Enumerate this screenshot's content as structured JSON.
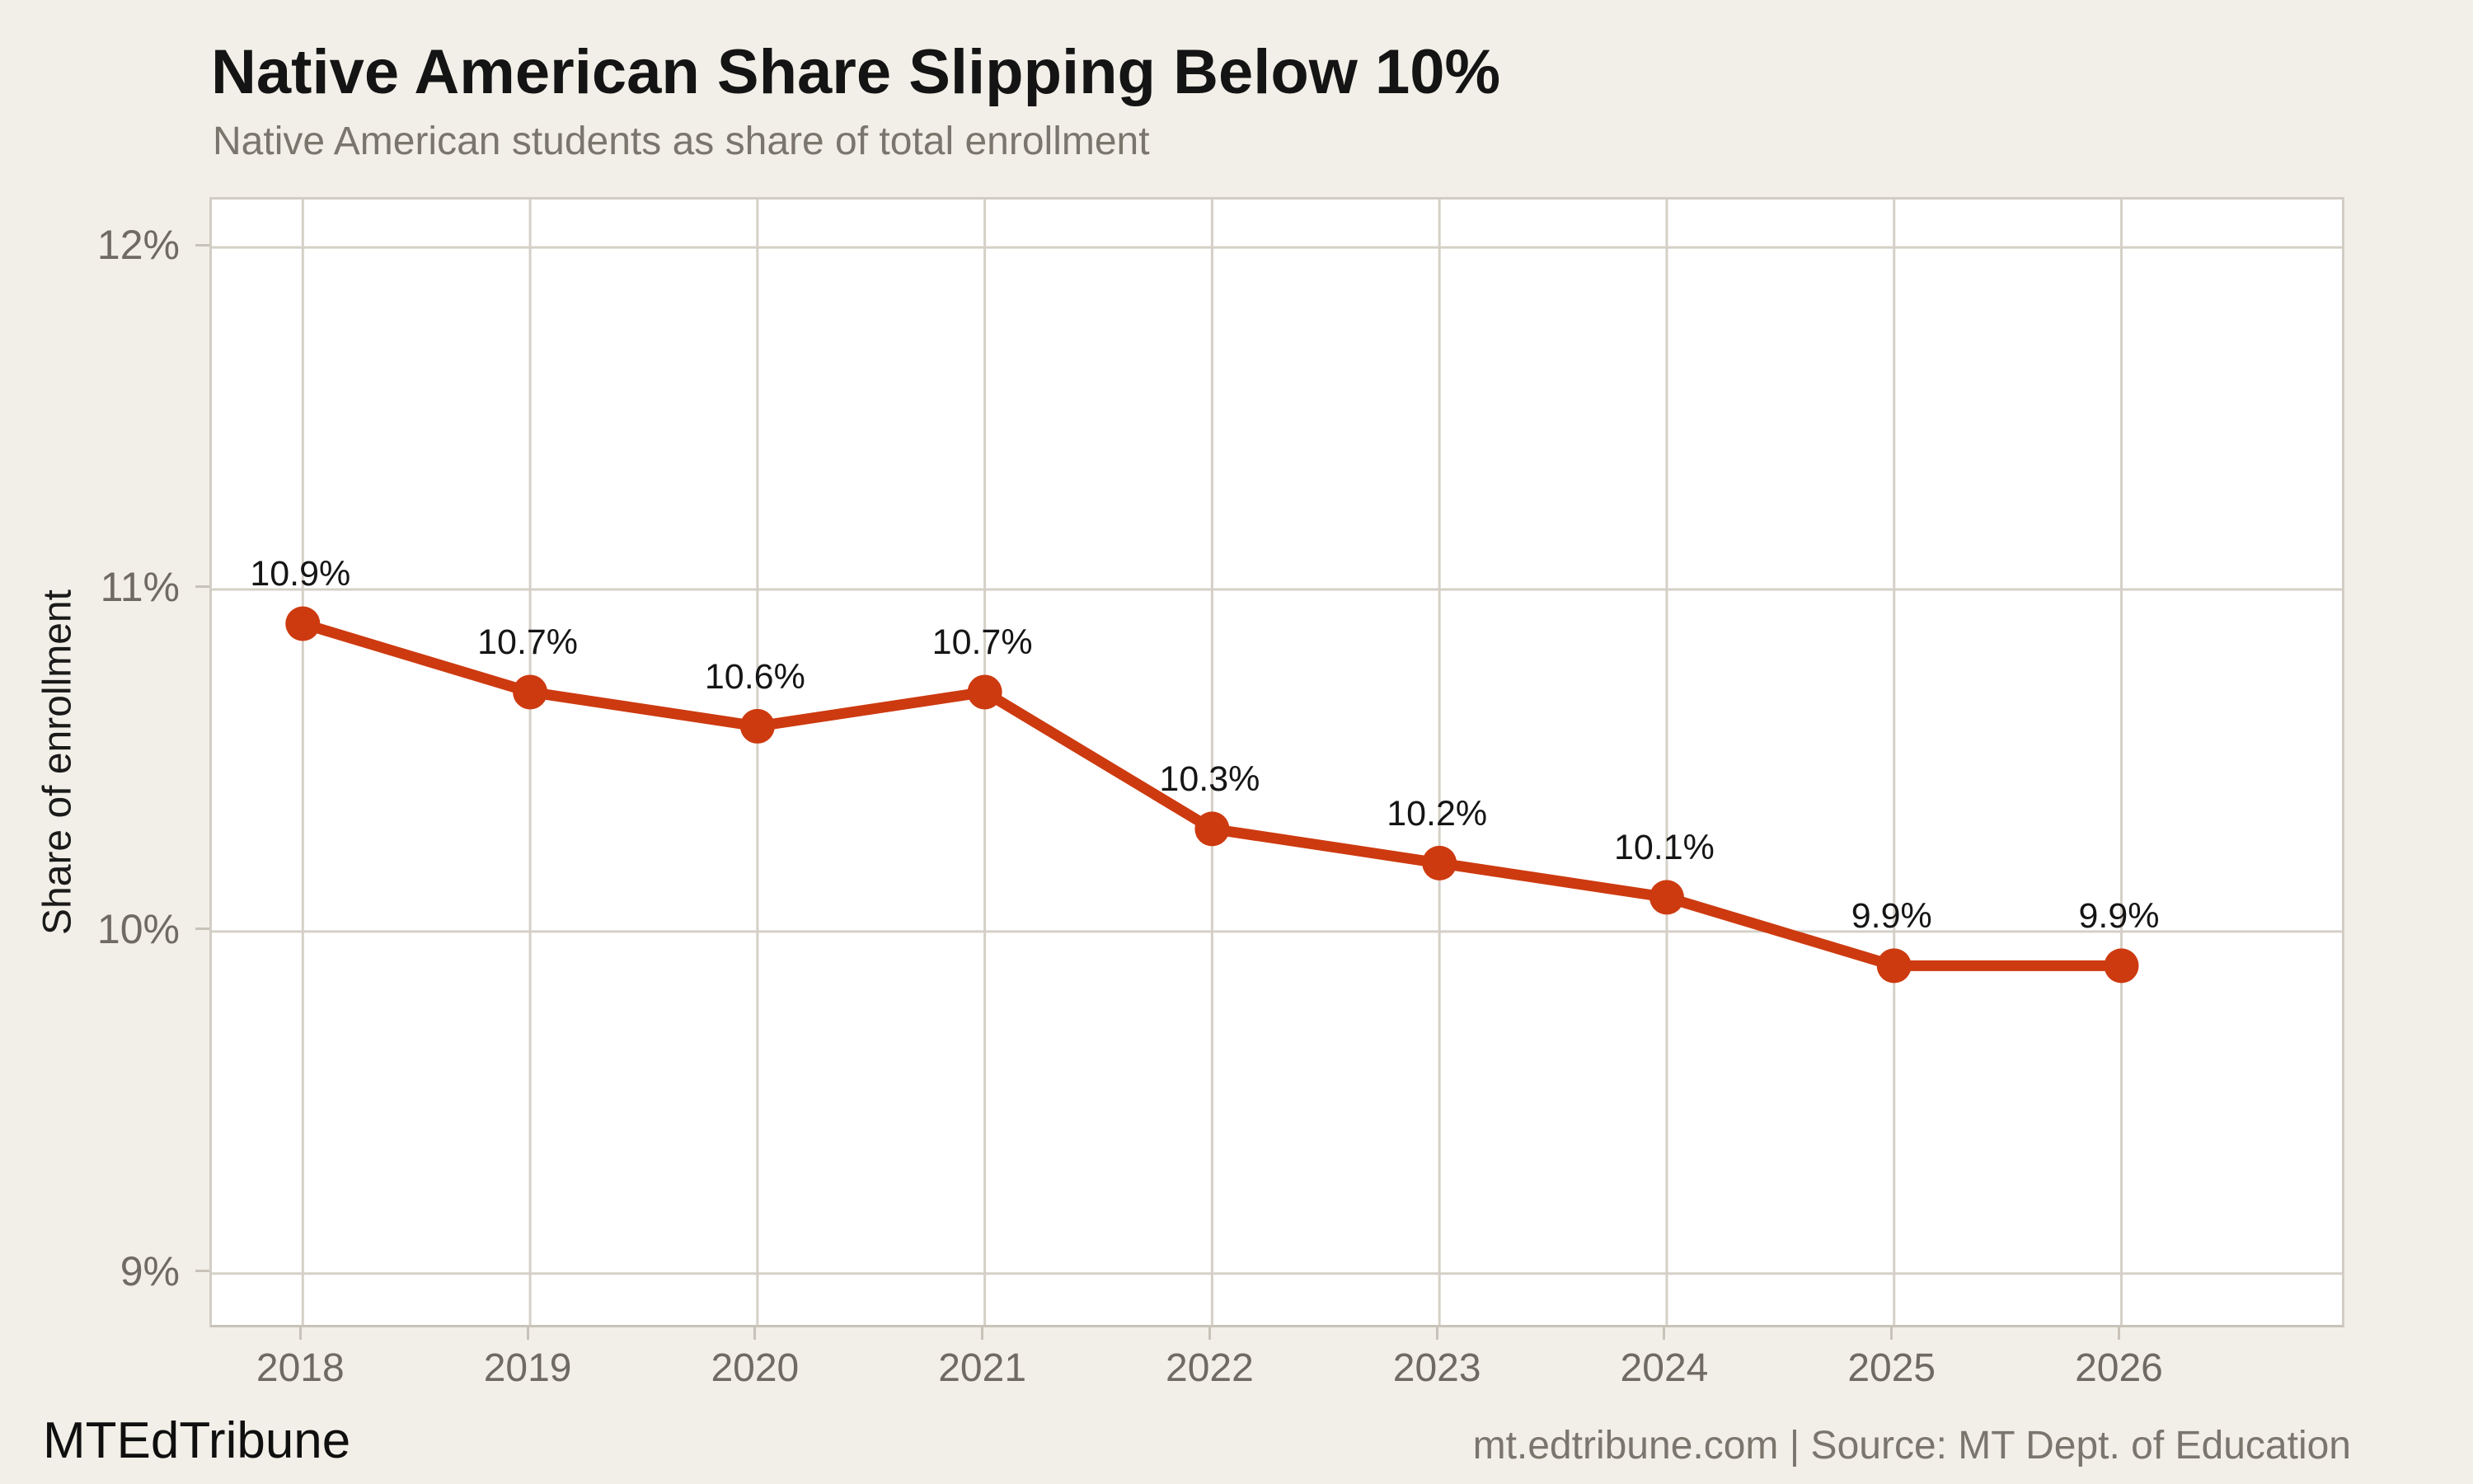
{
  "header": {
    "title": "Native American Share Slipping Below 10%",
    "subtitle": "Native American students as share of total enrollment"
  },
  "footer": {
    "brand": "MTEdTribune",
    "source": "mt.edtribune.com | Source: MT Dept. of Education"
  },
  "chart_data": {
    "type": "line",
    "title": "Native American Share Slipping Below 10%",
    "subtitle": "Native American students as share of total enrollment",
    "xlabel": "",
    "ylabel": "Share of enrollment",
    "x": [
      2018,
      2019,
      2020,
      2021,
      2022,
      2023,
      2024,
      2025,
      2026
    ],
    "values": [
      10.9,
      10.7,
      10.6,
      10.7,
      10.3,
      10.2,
      10.1,
      9.9,
      9.9
    ],
    "point_labels": [
      "10.9%",
      "10.7%",
      "10.6%",
      "10.7%",
      "10.3%",
      "10.2%",
      "10.1%",
      "9.9%",
      "9.9%"
    ],
    "x_ticks": [
      {
        "value": 2018,
        "label": "2018"
      },
      {
        "value": 2019,
        "label": "2019"
      },
      {
        "value": 2020,
        "label": "2020"
      },
      {
        "value": 2021,
        "label": "2021"
      },
      {
        "value": 2022,
        "label": "2022"
      },
      {
        "value": 2023,
        "label": "2023"
      },
      {
        "value": 2024,
        "label": "2024"
      },
      {
        "value": 2025,
        "label": "2025"
      },
      {
        "value": 2026,
        "label": "2026"
      }
    ],
    "y_ticks": [
      {
        "value": 9,
        "label": "9%"
      },
      {
        "value": 10,
        "label": "10%"
      },
      {
        "value": 11,
        "label": "11%"
      },
      {
        "value": 12,
        "label": "12%"
      }
    ],
    "xlim": [
      2017.6,
      2026.97
    ],
    "ylim": [
      8.85,
      12.14
    ],
    "grid": true,
    "legend": "none",
    "colors": {
      "line": "#cd3a10",
      "marker": "#cd3a10",
      "grid": "#d5d0c7",
      "plot_background": "#ffffff",
      "page_background": "#f2efe8",
      "tick_text": "#6f6a62",
      "subtitle_text": "#7b766d",
      "title_text": "#141414"
    }
  }
}
